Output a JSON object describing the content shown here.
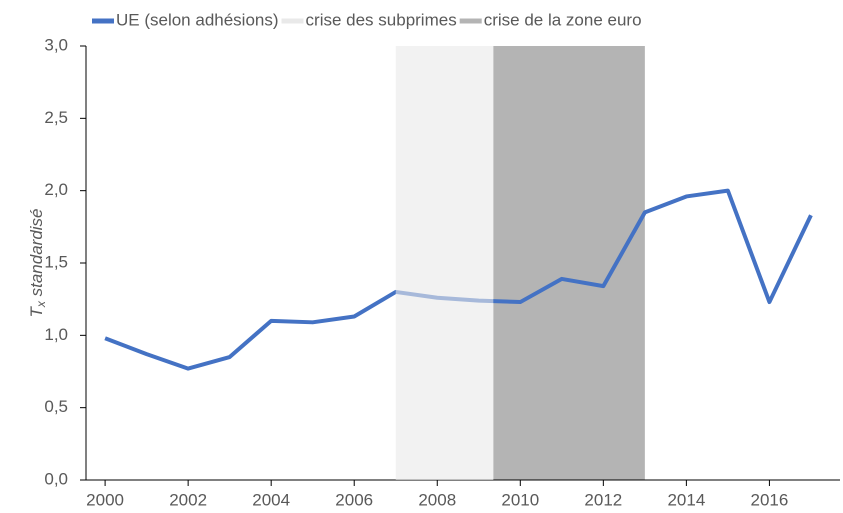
{
  "chart_data": {
    "type": "line",
    "y_label_parts": [
      "T",
      "x",
      " standardisé"
    ],
    "x": [
      2000,
      2001,
      2002,
      2003,
      2004,
      2005,
      2006,
      2007,
      2008,
      2009,
      2010,
      2011,
      2012,
      2013,
      2014,
      2015,
      2016,
      2017
    ],
    "series": [
      {
        "name": "UE (selon adhésions)",
        "color": "#4472c4",
        "values": [
          0.98,
          0.87,
          0.77,
          0.85,
          1.1,
          1.09,
          1.13,
          1.3,
          1.26,
          1.24,
          1.23,
          1.39,
          1.34,
          1.85,
          1.96,
          2.0,
          1.23,
          1.83
        ]
      }
    ],
    "periods": [
      {
        "name": "crise des subprimes",
        "color": "#e9e9e9",
        "start": 2007,
        "end": 2009.35,
        "layer": "front"
      },
      {
        "name": "crise de la zone euro",
        "color": "#b4b4b4",
        "start": 2009.35,
        "end": 2013,
        "layer": "back"
      }
    ],
    "xlim": [
      1999.54,
      2017.7
    ],
    "xticks": [
      2000,
      2002,
      2004,
      2006,
      2008,
      2010,
      2012,
      2014,
      2016
    ],
    "ylim": [
      0,
      3
    ],
    "yticks": [
      {
        "value": 0,
        "label": "0,0"
      },
      {
        "value": 0.5,
        "label": "0,5"
      },
      {
        "value": 1,
        "label": "1,0"
      },
      {
        "value": 1.5,
        "label": "1,5"
      },
      {
        "value": 2,
        "label": "2,0"
      },
      {
        "value": 2.5,
        "label": "2,5"
      },
      {
        "value": 3,
        "label": "3,0"
      }
    ],
    "legend": "top"
  }
}
